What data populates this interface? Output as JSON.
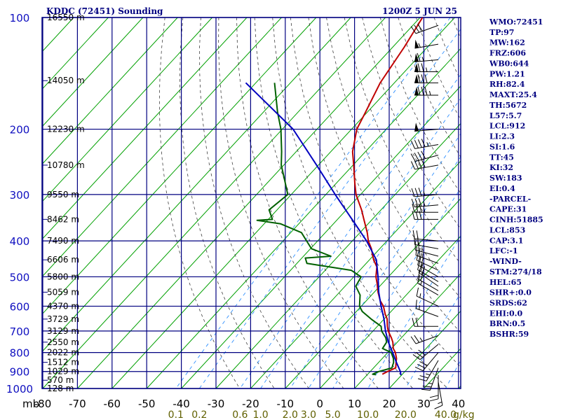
{
  "header": {
    "title": "KDDC (72451) Sounding",
    "datetime": "1200Z  5 JUN 25"
  },
  "indices": [
    "WMO:72451",
    "TP:97",
    "MW:162",
    "FRZ:606",
    "WB0:644",
    "PW:1.21",
    "RH:82.4",
    "MAXT:25.4",
    "TH:5672",
    "L57:5.7",
    "LCL:912",
    "LI:2.3",
    "SI:1.6",
    "TT:45",
    "KI:32",
    "SW:183",
    "EI:0.4",
    "-PARCEL-",
    "CAPE:31",
    "CINH:51885",
    "LCL:853",
    "CAP:3.1",
    "LFC:-1",
    "-WIND-",
    "STM:274/18",
    "HEL:65",
    "SHR+:0.0",
    "SRDS:62",
    "EHI:0.0",
    "BRN:0.5",
    "BSHR:59"
  ],
  "colors": {
    "frame": "#000080",
    "isotherm": "#00a000",
    "mixing_ratio": "#3090ff",
    "adiabat": "#404040",
    "temperature": "#c00000",
    "dewpoint": "#006000",
    "parcel": "#0000c0",
    "wind": "#000000"
  },
  "chart_data": {
    "type": "line",
    "title": "KDDC (72451) Sounding",
    "pressure_unit": "mb",
    "mixing_ratio_unit": "g/kg",
    "pressure_levels": [
      100,
      200,
      300,
      400,
      500,
      600,
      700,
      800,
      900,
      1000
    ],
    "temperature_ticks": [
      -80,
      -70,
      -60,
      -50,
      -40,
      -30,
      -20,
      -10,
      0,
      10,
      20,
      30,
      40
    ],
    "temperature_tick_labels": [
      "-80",
      "-70",
      "-60",
      "-50",
      "-40",
      "-30",
      "-20",
      "-10",
      "0",
      "10",
      "20",
      "30",
      "40"
    ],
    "mixing_ratio_labels": [
      {
        "label": "0.1",
        "value": 0.1
      },
      {
        "label": "0.2",
        "value": 0.2
      },
      {
        "label": "0.6",
        "value": 0.6
      },
      {
        "label": "1.0",
        "value": 1.0
      },
      {
        "label": "2.0",
        "value": 2.0
      },
      {
        "label": "3.0",
        "value": 3.0
      },
      {
        "label": "5.0",
        "value": 5.0
      },
      {
        "label": "10.0",
        "value": 10.0
      },
      {
        "label": "20.0",
        "value": 20.0
      },
      {
        "label": "40.0",
        "value": 40.0
      }
    ],
    "height_labels": [
      {
        "p": 100,
        "label": "16550 m"
      },
      {
        "p": 148,
        "label": "14050 m"
      },
      {
        "p": 200,
        "label": "12230 m"
      },
      {
        "p": 250,
        "label": "10780 m"
      },
      {
        "p": 300,
        "label": "9550 m"
      },
      {
        "p": 350,
        "label": "8462 m"
      },
      {
        "p": 400,
        "label": "7490 m"
      },
      {
        "p": 450,
        "label": "6606 m"
      },
      {
        "p": 500,
        "label": "5800 m"
      },
      {
        "p": 550,
        "label": "5059 m"
      },
      {
        "p": 600,
        "label": "4370 m"
      },
      {
        "p": 650,
        "label": "3729 m"
      },
      {
        "p": 700,
        "label": "3129 m"
      },
      {
        "p": 750,
        "label": "2550 m"
      },
      {
        "p": 800,
        "label": "2022 m"
      },
      {
        "p": 850,
        "label": "1512 m"
      },
      {
        "p": 900,
        "label": "1029 m"
      },
      {
        "p": 950,
        "label": "570 m"
      },
      {
        "p": 1000,
        "label": "128 m"
      }
    ],
    "series": [
      {
        "key": "temperature",
        "points": [
          [
            100,
            -69.3
          ],
          [
            120,
            -66.7
          ],
          [
            150,
            -64.1
          ],
          [
            180,
            -60.5
          ],
          [
            200,
            -58.5
          ],
          [
            230,
            -53.7
          ],
          [
            250,
            -49.8
          ],
          [
            280,
            -44.6
          ],
          [
            300,
            -41.3
          ],
          [
            330,
            -35.6
          ],
          [
            350,
            -32.4
          ],
          [
            380,
            -27.9
          ],
          [
            400,
            -25.4
          ],
          [
            420,
            -22.4
          ],
          [
            450,
            -18.8
          ],
          [
            470,
            -16.0
          ],
          [
            490,
            -14.4
          ],
          [
            500,
            -13.6
          ],
          [
            520,
            -11.6
          ],
          [
            550,
            -8.9
          ],
          [
            580,
            -6.0
          ],
          [
            600,
            -3.6
          ],
          [
            630,
            -1.0
          ],
          [
            650,
            0.9
          ],
          [
            680,
            2.9
          ],
          [
            700,
            4.4
          ],
          [
            730,
            7.1
          ],
          [
            750,
            8.7
          ],
          [
            780,
            10.5
          ],
          [
            800,
            12.2
          ],
          [
            830,
            14.1
          ],
          [
            850,
            15.0
          ],
          [
            880,
            16.4
          ],
          [
            900,
            15.0
          ],
          [
            915,
            14.2
          ]
        ]
      },
      {
        "key": "dewpoint",
        "points": [
          [
            150,
            -94.6
          ],
          [
            180,
            -85.9
          ],
          [
            200,
            -80.4
          ],
          [
            230,
            -74.2
          ],
          [
            250,
            -70.7
          ],
          [
            270,
            -66.6
          ],
          [
            300,
            -61.0
          ],
          [
            330,
            -62.3
          ],
          [
            350,
            -58.8
          ],
          [
            352,
            -63.0
          ],
          [
            360,
            -55.2
          ],
          [
            380,
            -46.9
          ],
          [
            400,
            -43.2
          ],
          [
            420,
            -39.7
          ],
          [
            440,
            -32.1
          ],
          [
            445,
            -39.0
          ],
          [
            460,
            -37.1
          ],
          [
            480,
            -22.5
          ],
          [
            500,
            -17.9
          ],
          [
            530,
            -16.9
          ],
          [
            560,
            -13.3
          ],
          [
            600,
            -10.5
          ],
          [
            620,
            -8.3
          ],
          [
            650,
            -3.7
          ],
          [
            680,
            1.1
          ],
          [
            700,
            2.5
          ],
          [
            730,
            5.5
          ],
          [
            750,
            6.9
          ],
          [
            780,
            7.4
          ],
          [
            800,
            11.0
          ],
          [
            830,
            13.2
          ],
          [
            850,
            14.3
          ],
          [
            880,
            15.3
          ],
          [
            900,
            12.5
          ],
          [
            915,
            11.4
          ],
          [
            918,
            12.5
          ]
        ]
      },
      {
        "key": "parcel",
        "points": [
          [
            150,
            -102.9
          ],
          [
            200,
            -76.9
          ],
          [
            250,
            -60.5
          ],
          [
            300,
            -47.3
          ],
          [
            350,
            -35.8
          ],
          [
            400,
            -25.9
          ],
          [
            450,
            -18.0
          ],
          [
            500,
            -13.0
          ],
          [
            550,
            -8.7
          ],
          [
            600,
            -4.3
          ],
          [
            650,
            0.0
          ],
          [
            700,
            3.6
          ],
          [
            750,
            7.4
          ],
          [
            800,
            11.4
          ],
          [
            850,
            15.1
          ],
          [
            900,
            18.7
          ],
          [
            920,
            19.8
          ]
        ]
      }
    ],
    "wind_barbs": [
      {
        "p": 105,
        "dir": 250,
        "spd": 30
      },
      {
        "p": 118,
        "dir": 260,
        "spd": 55
      },
      {
        "p": 130,
        "dir": 265,
        "spd": 65
      },
      {
        "p": 140,
        "dir": 270,
        "spd": 75
      },
      {
        "p": 150,
        "dir": 270,
        "spd": 80
      },
      {
        "p": 162,
        "dir": 270,
        "spd": 85
      },
      {
        "p": 200,
        "dir": 265,
        "spd": 50
      },
      {
        "p": 220,
        "dir": 260,
        "spd": 45
      },
      {
        "p": 235,
        "dir": 255,
        "spd": 40
      },
      {
        "p": 250,
        "dir": 260,
        "spd": 40
      },
      {
        "p": 300,
        "dir": 265,
        "spd": 35
      },
      {
        "p": 320,
        "dir": 265,
        "spd": 35
      },
      {
        "p": 335,
        "dir": 270,
        "spd": 35
      },
      {
        "p": 350,
        "dir": 270,
        "spd": 30
      },
      {
        "p": 400,
        "dir": 275,
        "spd": 20
      },
      {
        "p": 420,
        "dir": 280,
        "spd": 20
      },
      {
        "p": 440,
        "dir": 285,
        "spd": 25
      },
      {
        "p": 460,
        "dir": 290,
        "spd": 25
      },
      {
        "p": 480,
        "dir": 295,
        "spd": 20
      },
      {
        "p": 500,
        "dir": 300,
        "spd": 20
      },
      {
        "p": 515,
        "dir": 300,
        "spd": 20
      },
      {
        "p": 530,
        "dir": 305,
        "spd": 20
      },
      {
        "p": 545,
        "dir": 300,
        "spd": 20
      },
      {
        "p": 560,
        "dir": 300,
        "spd": 15
      },
      {
        "p": 600,
        "dir": 295,
        "spd": 15
      },
      {
        "p": 640,
        "dir": 290,
        "spd": 15
      },
      {
        "p": 680,
        "dir": 270,
        "spd": 20
      },
      {
        "p": 720,
        "dir": 250,
        "spd": 25
      },
      {
        "p": 760,
        "dir": 230,
        "spd": 30
      },
      {
        "p": 800,
        "dir": 220,
        "spd": 30
      },
      {
        "p": 840,
        "dir": 210,
        "spd": 25
      },
      {
        "p": 880,
        "dir": 200,
        "spd": 25
      },
      {
        "p": 920,
        "dir": 180,
        "spd": 20
      },
      {
        "p": 960,
        "dir": 170,
        "spd": 15
      }
    ]
  }
}
